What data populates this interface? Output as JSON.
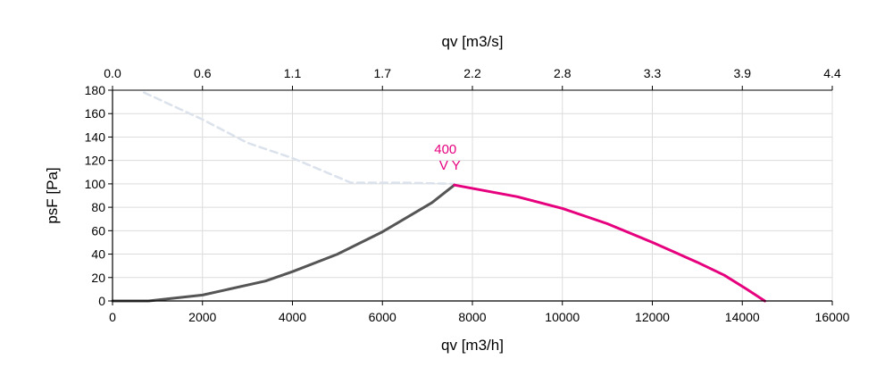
{
  "chart_data": {
    "type": "line",
    "x_axis_bottom": {
      "label": "qv [m3/h]",
      "range": [
        0,
        16000
      ],
      "ticks": [
        0,
        2000,
        4000,
        6000,
        8000,
        10000,
        12000,
        14000,
        16000
      ]
    },
    "x_axis_top": {
      "label": "qv [m3/s]",
      "range": [
        0,
        4.4
      ],
      "ticks": [
        "0.0",
        "0.6",
        "1.1",
        "1.7",
        "2.2",
        "2.8",
        "3.3",
        "3.9",
        "4.4"
      ]
    },
    "y_axis": {
      "label": "psF [Pa]",
      "range": [
        0,
        180
      ],
      "ticks": [
        0,
        20,
        40,
        60,
        80,
        100,
        120,
        140,
        160,
        180
      ]
    },
    "grid": true,
    "series": [
      {
        "name": "",
        "role": "limit-curve",
        "style": "dashed",
        "color": "#dbe2ec",
        "points": [
          [
            700,
            178
          ],
          [
            2000,
            155
          ],
          [
            3000,
            135
          ],
          [
            4000,
            122
          ],
          [
            5300,
            101
          ],
          [
            6500,
            101
          ],
          [
            7600,
            100
          ]
        ]
      },
      {
        "name": "",
        "role": "low-flow",
        "style": "solid",
        "color": "#555555",
        "points": [
          [
            0,
            0
          ],
          [
            800,
            0
          ],
          [
            2000,
            5
          ],
          [
            3400,
            17
          ],
          [
            4000,
            25
          ],
          [
            5000,
            40
          ],
          [
            6000,
            59
          ],
          [
            7100,
            84
          ],
          [
            7600,
            99
          ]
        ]
      },
      {
        "name": "",
        "role": "operating",
        "style": "solid",
        "color": "#e6007e",
        "points": [
          [
            7600,
            99
          ],
          [
            9000,
            89
          ],
          [
            10000,
            79
          ],
          [
            11000,
            66
          ],
          [
            12000,
            50
          ],
          [
            13000,
            33
          ],
          [
            13600,
            22
          ],
          [
            14100,
            10
          ],
          [
            14500,
            0
          ]
        ]
      }
    ],
    "annotations": [
      {
        "text": "400",
        "x": 7400,
        "y": 126,
        "color": "#e6007e"
      },
      {
        "text": "V Y",
        "x": 7500,
        "y": 112,
        "color": "#e6007e"
      }
    ]
  }
}
